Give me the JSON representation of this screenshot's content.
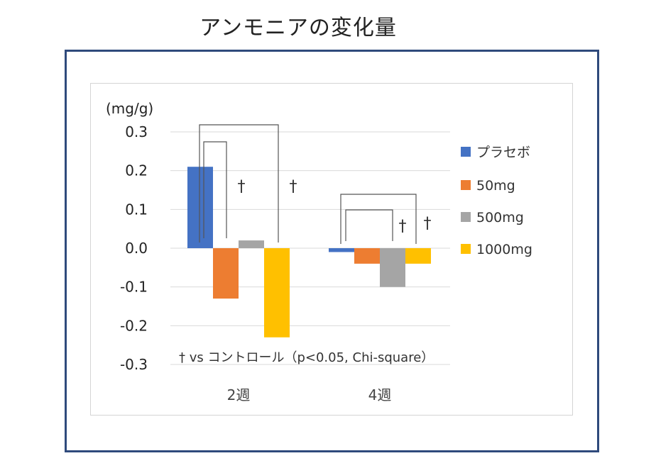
{
  "page_title": "アンモニアの変化量",
  "chart_data": {
    "type": "bar",
    "title": "アンモニアの変化量",
    "ylabel": "(mg/g)",
    "xlabel": "",
    "ylim": [
      -0.3,
      0.3
    ],
    "yticks": [
      "0.3",
      "0.2",
      "0.1",
      "0.0",
      "-0.1",
      "-0.2",
      "-0.3"
    ],
    "grid": true,
    "legend_position": "right",
    "categories": [
      "2週",
      "4週"
    ],
    "series": [
      {
        "name": "プラセボ",
        "color": "#4472c4",
        "values": [
          0.21,
          -0.01
        ]
      },
      {
        "name": "50mg",
        "color": "#ed7d31",
        "values": [
          -0.13,
          -0.04
        ]
      },
      {
        "name": "500mg",
        "color": "#a5a5a5",
        "values": [
          0.02,
          -0.1
        ]
      },
      {
        "name": "1000mg",
        "color": "#ffc000",
        "values": [
          -0.23,
          -0.04
        ]
      }
    ],
    "significance_marker": "†",
    "comparisons": [
      {
        "category": "2週",
        "from_series": "プラセボ",
        "to_series": "50mg"
      },
      {
        "category": "2週",
        "from_series": "プラセボ",
        "to_series": "1000mg"
      },
      {
        "category": "4週",
        "from_series": "プラセボ",
        "to_series": "500mg"
      },
      {
        "category": "4週",
        "from_series": "プラセボ",
        "to_series": "1000mg"
      }
    ],
    "footnote": "† vs コントロール（p<0.05, Chi-square）"
  }
}
